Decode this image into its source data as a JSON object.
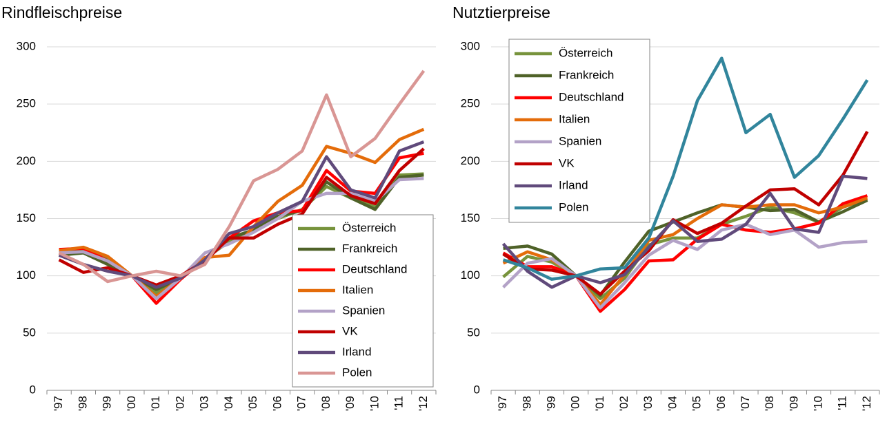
{
  "chart_data": [
    {
      "type": "line",
      "title": "Rindfleischpreise",
      "legend": "bottom-right",
      "grid": true,
      "categories": [
        "'97",
        "'98",
        "'99",
        "'00",
        "'01",
        "'02",
        "'03",
        "'04",
        "'05",
        "'06",
        "'07",
        "'08",
        "'09",
        "'10",
        "'11",
        "'12"
      ],
      "ylim": [
        0,
        300
      ],
      "yticks": [
        0,
        50,
        100,
        150,
        200,
        250,
        300
      ],
      "series": [
        {
          "name": "Österreich",
          "color": "#77933c",
          "values": [
            120,
            123,
            115,
            100,
            85,
            98,
            115,
            130,
            140,
            150,
            158,
            178,
            168,
            160,
            188,
            189
          ]
        },
        {
          "name": "Frankreich",
          "color": "#4f6228",
          "values": [
            118,
            120,
            110,
            100,
            88,
            98,
            113,
            133,
            140,
            152,
            157,
            182,
            168,
            158,
            186,
            188
          ]
        },
        {
          "name": "Deutschland",
          "color": "#ff0000",
          "values": [
            123,
            124,
            113,
            100,
            76,
            97,
            115,
            133,
            148,
            155,
            157,
            192,
            174,
            172,
            203,
            207
          ]
        },
        {
          "name": "Italien",
          "color": "#e46c0a",
          "values": [
            122,
            125,
            117,
            100,
            82,
            98,
            116,
            118,
            143,
            165,
            179,
            213,
            207,
            199,
            219,
            228
          ]
        },
        {
          "name": "Spanien",
          "color": "#b3a2c7",
          "values": [
            120,
            121,
            113,
            100,
            80,
            98,
            120,
            128,
            138,
            150,
            165,
            172,
            172,
            165,
            184,
            185
          ]
        },
        {
          "name": "VK",
          "color": "#c00000",
          "values": [
            114,
            103,
            107,
            100,
            92,
            100,
            113,
            133,
            133,
            145,
            154,
            186,
            170,
            163,
            192,
            211
          ]
        },
        {
          "name": "Irland",
          "color": "#604a7b",
          "values": [
            118,
            110,
            104,
            100,
            90,
            98,
            114,
            137,
            143,
            155,
            165,
            204,
            175,
            168,
            209,
            217
          ]
        },
        {
          "name": "Polen",
          "color": "#d99694",
          "values": [
            120,
            110,
            95,
            100,
            104,
            100,
            110,
            143,
            183,
            193,
            209,
            258,
            204,
            220,
            250,
            279
          ]
        }
      ]
    },
    {
      "type": "line",
      "title": "Nutztierpreise",
      "legend": "top-left",
      "grid": true,
      "categories": [
        "'97",
        "'98",
        "'99",
        "'00",
        "'01",
        "'02",
        "'03",
        "'04",
        "'05",
        "'06",
        "'07",
        "'08",
        "'09",
        "'10",
        "'11",
        "'12"
      ],
      "ylim": [
        0,
        300
      ],
      "yticks": [
        0,
        50,
        100,
        150,
        200,
        250,
        300
      ],
      "series": [
        {
          "name": "Österreich",
          "color": "#77933c",
          "values": [
            99,
            117,
            112,
            100,
            80,
            98,
            127,
            133,
            133,
            145,
            152,
            160,
            155,
            147,
            160,
            167
          ]
        },
        {
          "name": "Frankreich",
          "color": "#4f6228",
          "values": [
            124,
            126,
            119,
            100,
            83,
            112,
            139,
            147,
            155,
            162,
            160,
            157,
            158,
            147,
            156,
            166
          ]
        },
        {
          "name": "Deutschland",
          "color": "#ff0000",
          "values": [
            120,
            108,
            108,
            100,
            69,
            88,
            113,
            114,
            132,
            145,
            140,
            138,
            141,
            146,
            163,
            170
          ]
        },
        {
          "name": "Italien",
          "color": "#e46c0a",
          "values": [
            111,
            121,
            114,
            100,
            75,
            101,
            131,
            136,
            150,
            162,
            160,
            162,
            162,
            155,
            160,
            168
          ]
        },
        {
          "name": "Spanien",
          "color": "#b3a2c7",
          "values": [
            90,
            111,
            115,
            100,
            72,
            94,
            118,
            131,
            123,
            140,
            145,
            136,
            140,
            125,
            129,
            130
          ]
        },
        {
          "name": "VK",
          "color": "#c00000",
          "values": [
            119,
            106,
            105,
            100,
            84,
            104,
            122,
            149,
            137,
            146,
            161,
            175,
            176,
            162,
            188,
            226
          ]
        },
        {
          "name": "Irland",
          "color": "#604a7b",
          "values": [
            128,
            104,
            90,
            100,
            94,
            101,
            125,
            148,
            130,
            132,
            145,
            172,
            141,
            138,
            187,
            185
          ]
        },
        {
          "name": "Polen",
          "color": "#31859c",
          "values": [
            114,
            107,
            97,
            100,
            106,
            107,
            133,
            187,
            253,
            290,
            225,
            241,
            186,
            205,
            237,
            271
          ]
        }
      ]
    }
  ]
}
